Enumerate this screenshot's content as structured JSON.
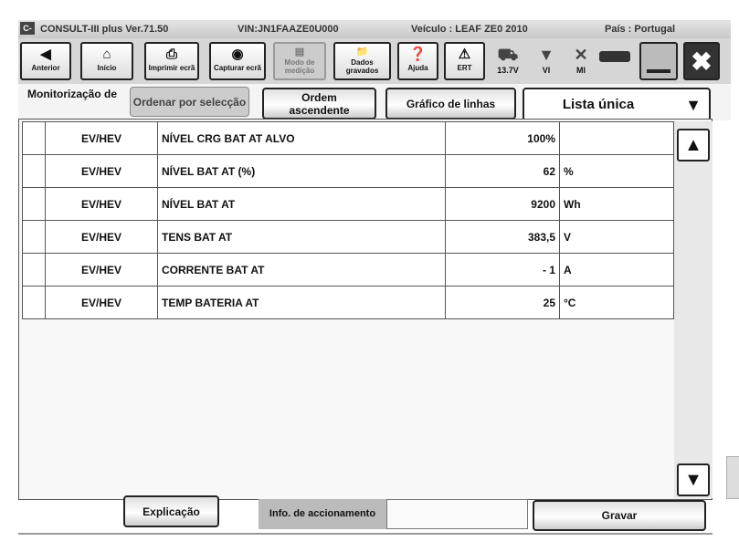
{
  "titlebar": {
    "app": "CONSULT-III plus  Ver.71.50",
    "vin": "VIN:JN1FAAZE0U000",
    "vehicle": "Veículo : LEAF ZE0 2010",
    "country": "País : Portugal",
    "logo": "C-III"
  },
  "toolbar": {
    "back": "Anterior",
    "home": "Início",
    "print": "Imprimir ecrã",
    "capture": "Capturar ecrã",
    "mode": "Modo de medição",
    "saved": "Dados gravados",
    "help": "Ajuda",
    "ert": "ERT",
    "voltage": "13.7V",
    "vi": "VI",
    "mi": "MI"
  },
  "controls": {
    "label": "Monitorização de",
    "sort_select": "Ordenar por selecção",
    "sort_asc_1": "Ordem",
    "sort_asc_2": "ascendente",
    "line_graph": "Gráfico de linhas",
    "list_mode": "Lista única"
  },
  "rows": [
    {
      "system": "EV/HEV",
      "item": "NÍVEL CRG BAT AT ALVO",
      "value": "100%",
      "unit": ""
    },
    {
      "system": "EV/HEV",
      "item": "NÍVEL BAT AT (%)",
      "value": "62",
      "unit": "%"
    },
    {
      "system": "EV/HEV",
      "item": "NÍVEL BAT AT",
      "value": "9200",
      "unit": "Wh"
    },
    {
      "system": "EV/HEV",
      "item": "TENS BAT AT",
      "value": "383,5",
      "unit": "V"
    },
    {
      "system": "EV/HEV",
      "item": "CORRENTE BAT AT",
      "value": "- 1",
      "unit": "A"
    },
    {
      "system": "EV/HEV",
      "item": "TEMP BATERIA AT",
      "value": "25",
      "unit": "°C"
    }
  ],
  "footer": {
    "explain": "Explicação",
    "info_label": "Info. de accionamento",
    "info_value": "",
    "record": "Gravar"
  }
}
